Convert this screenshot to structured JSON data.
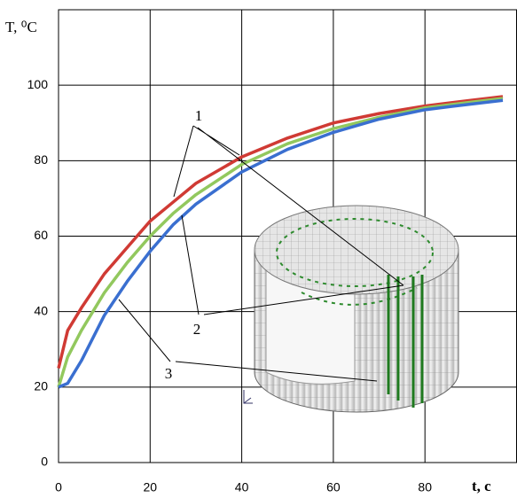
{
  "chart_data": {
    "type": "line",
    "y_label": "T, ⁰C",
    "x_label": "t, c",
    "x": [
      0,
      2,
      5,
      10,
      15,
      20,
      25,
      30,
      40,
      50,
      60,
      70,
      80,
      90,
      97
    ],
    "series": [
      {
        "name": "1",
        "color": "#d03a34",
        "values": [
          25,
          35,
          41,
          50,
          57,
          64,
          69,
          74,
          81,
          86,
          90,
          92.5,
          94.5,
          96,
          97
        ]
      },
      {
        "name": "2",
        "color": "#92c85e",
        "values": [
          20,
          28,
          35,
          45,
          53,
          60,
          66,
          71,
          79,
          84.5,
          88.5,
          91.5,
          94,
          95.5,
          96.5
        ]
      },
      {
        "name": "3",
        "color": "#3a6fd0",
        "values": [
          20,
          21,
          27,
          39,
          48,
          56,
          63,
          68.5,
          77,
          83,
          87.5,
          91,
          93.5,
          95,
          96
        ]
      }
    ],
    "xlim": [
      0,
      100
    ],
    "xticks": [
      0,
      20,
      40,
      60,
      80
    ],
    "ylim": [
      0,
      120
    ],
    "yticks": [
      0,
      20,
      40,
      60,
      80,
      100
    ],
    "grid": true
  }
}
